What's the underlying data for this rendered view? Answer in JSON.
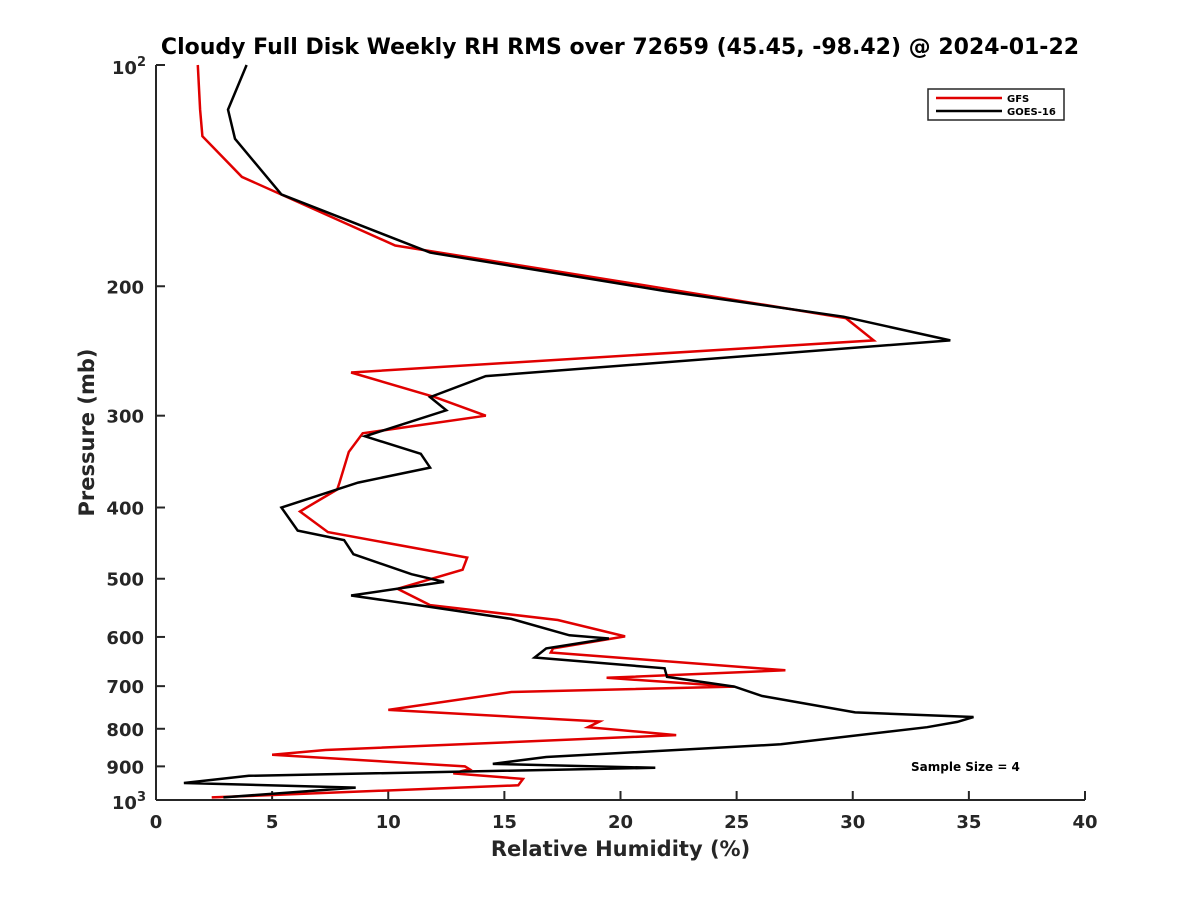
{
  "chart_data": {
    "type": "line",
    "title": "Cloudy Full Disk Weekly RH RMS over 72659 (45.45, -98.42) @ 2024-01-22",
    "xlabel": "Relative Humidity (%)",
    "ylabel": "Pressure (mb)",
    "xlim": [
      0,
      40
    ],
    "ylim": [
      100,
      1000
    ],
    "y_scale": "log",
    "y_reversed": true,
    "grid": false,
    "legend_position": "top-right",
    "x_ticks": [
      "0",
      "5",
      "10",
      "15",
      "20",
      "25",
      "30",
      "35",
      "40"
    ],
    "y_ticks": [
      {
        "value": 100,
        "base": "10",
        "exp": "2"
      },
      {
        "value": 200,
        "label": "200"
      },
      {
        "value": 300,
        "label": "300"
      },
      {
        "value": 400,
        "label": "400"
      },
      {
        "value": 500,
        "label": "500"
      },
      {
        "value": 600,
        "label": "600"
      },
      {
        "value": 700,
        "label": "700"
      },
      {
        "value": 800,
        "label": "800"
      },
      {
        "value": 900,
        "label": "900"
      },
      {
        "value": 1000,
        "base": "10",
        "exp": "3"
      }
    ],
    "annotation": "Sample Size = 4",
    "series": [
      {
        "name": "GFS",
        "color": "#e00000",
        "points": [
          [
            1.8,
            100
          ],
          [
            1.9,
            115
          ],
          [
            2.0,
            125
          ],
          [
            3.7,
            142
          ],
          [
            10.3,
            176
          ],
          [
            21.7,
            201
          ],
          [
            29.7,
            221
          ],
          [
            30.9,
            237
          ],
          [
            8.4,
            262
          ],
          [
            12.0,
            283
          ],
          [
            14.2,
            300
          ],
          [
            8.9,
            317
          ],
          [
            8.3,
            336
          ],
          [
            7.9,
            370
          ],
          [
            7.8,
            378
          ],
          [
            6.2,
            405
          ],
          [
            7.4,
            432
          ],
          [
            13.4,
            468
          ],
          [
            13.2,
            486
          ],
          [
            10.4,
            516
          ],
          [
            11.8,
            543
          ],
          [
            17.3,
            569
          ],
          [
            20.2,
            599
          ],
          [
            17.1,
            622
          ],
          [
            17.0,
            630
          ],
          [
            27.1,
            666
          ],
          [
            19.4,
            682
          ],
          [
            24.9,
            701
          ],
          [
            15.3,
            713
          ],
          [
            10.0,
            754
          ],
          [
            19.1,
            782
          ],
          [
            18.6,
            796
          ],
          [
            22.4,
            816
          ],
          [
            7.3,
            855
          ],
          [
            5.0,
            868
          ],
          [
            13.3,
            900
          ],
          [
            13.5,
            908
          ],
          [
            13.2,
            913
          ],
          [
            12.8,
            920
          ],
          [
            15.8,
            936
          ],
          [
            15.6,
            955
          ],
          [
            2.4,
            992
          ]
        ]
      },
      {
        "name": "GOES-16",
        "color": "#000000",
        "points": [
          [
            3.9,
            100
          ],
          [
            3.1,
            115
          ],
          [
            3.4,
            126
          ],
          [
            5.4,
            150
          ],
          [
            11.8,
            180
          ],
          [
            21.9,
            203
          ],
          [
            29.6,
            220
          ],
          [
            34.2,
            237
          ],
          [
            14.2,
            265
          ],
          [
            11.8,
            283
          ],
          [
            12.5,
            295
          ],
          [
            9.0,
            320
          ],
          [
            11.4,
            338
          ],
          [
            11.8,
            353
          ],
          [
            8.7,
            370
          ],
          [
            5.4,
            400
          ],
          [
            6.1,
            430
          ],
          [
            8.1,
            443
          ],
          [
            8.5,
            463
          ],
          [
            11.0,
            493
          ],
          [
            12.4,
            505
          ],
          [
            8.4,
            527
          ],
          [
            11.1,
            542
          ],
          [
            15.3,
            567
          ],
          [
            17.8,
            597
          ],
          [
            19.5,
            603
          ],
          [
            16.8,
            622
          ],
          [
            16.3,
            640
          ],
          [
            21.9,
            662
          ],
          [
            22.0,
            680
          ],
          [
            24.9,
            701
          ],
          [
            26.1,
            722
          ],
          [
            30.1,
            760
          ],
          [
            35.2,
            771
          ],
          [
            34.5,
            783
          ],
          [
            33.2,
            796
          ],
          [
            26.9,
            840
          ],
          [
            16.8,
            874
          ],
          [
            14.5,
            893
          ],
          [
            21.5,
            904
          ],
          [
            4.0,
            927
          ],
          [
            1.2,
            948
          ],
          [
            8.6,
            962
          ],
          [
            2.9,
            992
          ]
        ]
      }
    ]
  }
}
